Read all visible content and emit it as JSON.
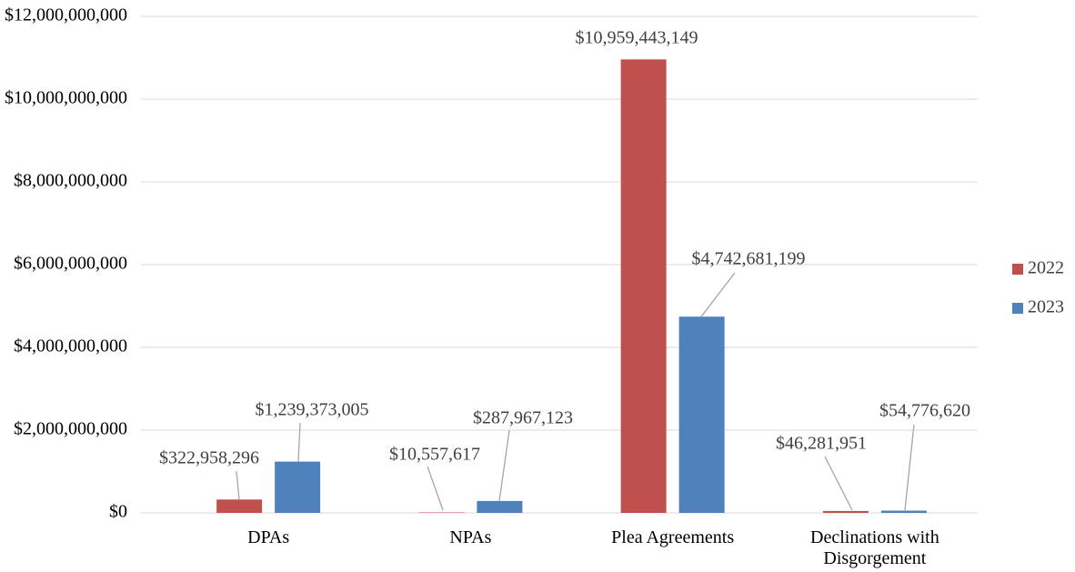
{
  "chart_data": {
    "type": "bar",
    "categories": [
      "DPAs",
      "NPAs",
      "Plea Agreements",
      "Declinations with Disgorgement"
    ],
    "series": [
      {
        "name": "2022",
        "color": "#c0504d",
        "values": [
          322958296,
          10557617,
          10959443149,
          46281951
        ],
        "value_labels": [
          "$322,958,296",
          "$10,557,617",
          "$10,959,443,149",
          "$46,281,951"
        ]
      },
      {
        "name": "2023",
        "color": "#4f81bd",
        "values": [
          1239373005,
          287967123,
          4742681199,
          54776620
        ],
        "value_labels": [
          "$1,239,373,005",
          "$287,967,123",
          "$4,742,681,199",
          "$54,776,620"
        ]
      }
    ],
    "ylim": [
      0,
      12000000000
    ],
    "yticks": [
      {
        "value": 0,
        "label": "$0"
      },
      {
        "value": 2000000000,
        "label": "$2,000,000,000"
      },
      {
        "value": 4000000000,
        "label": "$4,000,000,000"
      },
      {
        "value": 6000000000,
        "label": "$6,000,000,000"
      },
      {
        "value": 8000000000,
        "label": "$8,000,000,000"
      },
      {
        "value": 10000000000,
        "label": "$10,000,000,000"
      },
      {
        "value": 12000000000,
        "label": "$12,000,000,000"
      }
    ],
    "grid": true,
    "legend": "right"
  }
}
